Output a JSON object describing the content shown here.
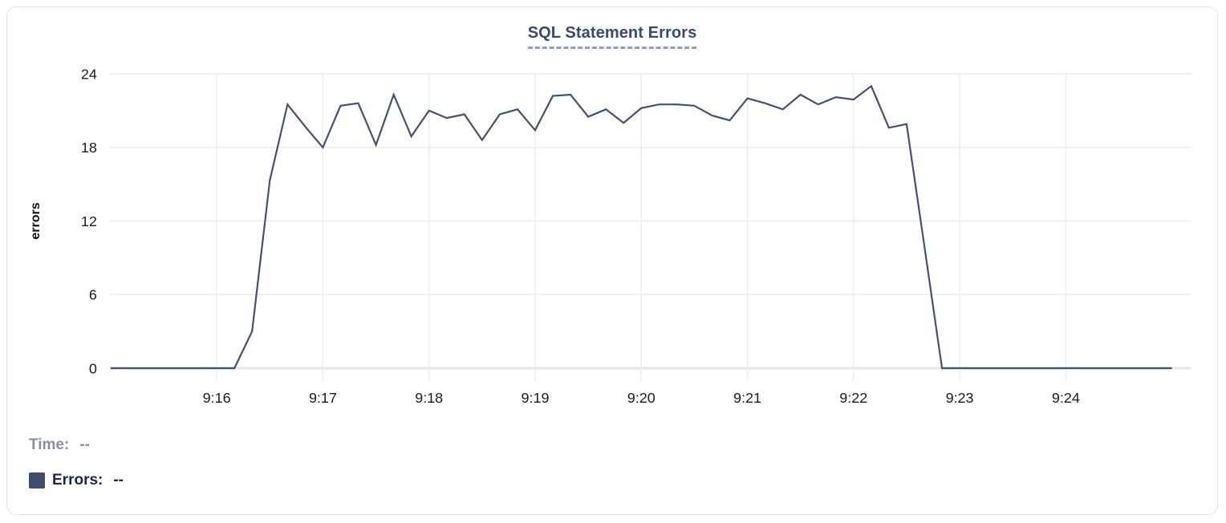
{
  "card": {
    "title": "SQL Statement Errors"
  },
  "tooltip_readout": {
    "time_label": "Time:",
    "time_value": "--",
    "errors_label": "Errors:",
    "errors_value": "--"
  },
  "colors": {
    "title_text": "#3b4a6e",
    "title_underline": "#909ec0",
    "series_line": "#44516f",
    "legend_swatch": "#3e4d6b",
    "time_readout_text": "#8b909a",
    "errors_readout_text": "#1b2849",
    "gridline": "#ececec",
    "axis_zero_line": "#e9e9e9",
    "tick_label_text": "#1c1c1e",
    "card_border": "#e2e3e6"
  },
  "chart_data": {
    "type": "line",
    "title": "SQL Statement Errors",
    "xlabel": "",
    "ylabel": "errors",
    "ylim": [
      0,
      24
    ],
    "y_ticks": [
      0,
      6,
      12,
      18,
      24
    ],
    "x_ticks": [
      "9:16",
      "9:17",
      "9:18",
      "9:19",
      "9:20",
      "9:21",
      "9:22",
      "9:23",
      "9:24"
    ],
    "x_start": "9:15:00",
    "x_end": "9:25:00",
    "sample_interval_seconds": 10,
    "grid": true,
    "legend_position": "bottom-left",
    "series": [
      {
        "name": "Errors",
        "color": "#44516f",
        "values": [
          0,
          0,
          0,
          0,
          0,
          0,
          0,
          0,
          3,
          15.3,
          21.5,
          19.7,
          18,
          21.4,
          21.6,
          18.2,
          22.3,
          18.9,
          21,
          20.4,
          20.7,
          18.6,
          20.7,
          21.1,
          19.4,
          22.2,
          22.3,
          20.5,
          21.1,
          20,
          21.2,
          21.5,
          21.5,
          21.4,
          20.6,
          20.2,
          22,
          21.6,
          21.1,
          22.3,
          21.5,
          22.1,
          21.9,
          23,
          19.6,
          19.9,
          10,
          0,
          0,
          0,
          0,
          0,
          0,
          0,
          0,
          0,
          0,
          0,
          0,
          0,
          0
        ]
      }
    ]
  }
}
